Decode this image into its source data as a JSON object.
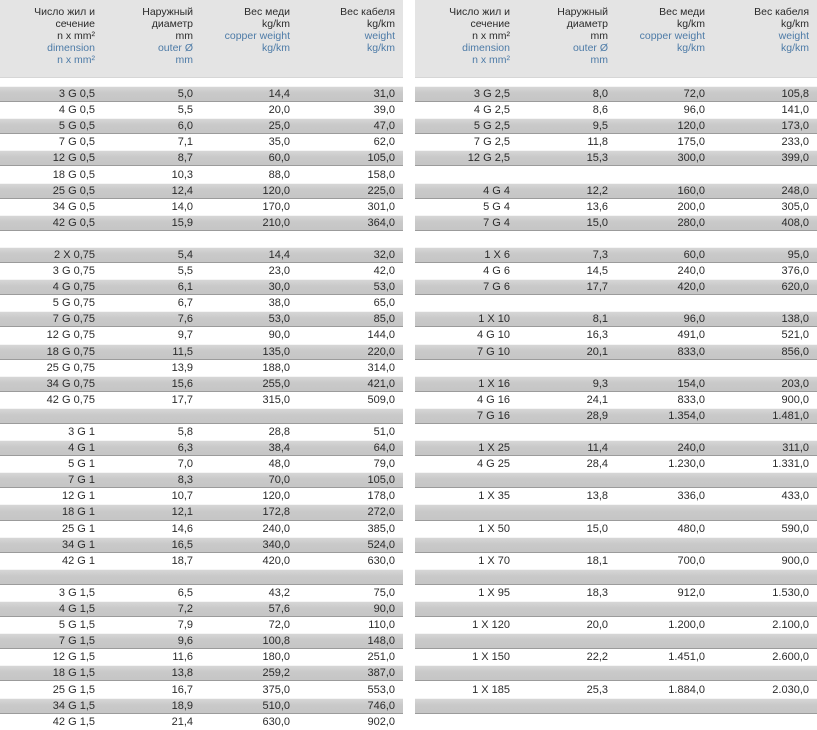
{
  "colors": {
    "accent_blue": "#4d7ba7",
    "header_background": "#e4e4e4",
    "shaded_row": "#c9c9c9",
    "text": "#2b2b2b"
  },
  "header": {
    "columns": [
      {
        "id": "dimension",
        "ru_lines": [
          "Число жил и",
          "сечение",
          "n x mm²"
        ],
        "en_lines": [
          "dimension",
          "n x mm²"
        ]
      },
      {
        "id": "outer-diameter",
        "ru_lines": [
          "Наружный",
          "диаметр",
          "mm"
        ],
        "en_lines": [
          "outer Ø",
          "mm"
        ]
      },
      {
        "id": "copper-weight",
        "ru_lines": [
          "Вес меди",
          "kg/km"
        ],
        "en_lines": [
          "copper weight",
          "kg/km"
        ]
      },
      {
        "id": "cable-weight",
        "ru_lines": [
          "Вес кабеля",
          "kg/km"
        ],
        "en_lines": [
          "weight",
          "kg/km"
        ]
      }
    ]
  },
  "tables": [
    {
      "id": "left",
      "rows": [
        {
          "dim": "3 G 0,5",
          "outer": "5,0",
          "copper": "14,4",
          "weight": "31,0",
          "shaded": true
        },
        {
          "dim": "4 G 0,5",
          "outer": "5,5",
          "copper": "20,0",
          "weight": "39,0",
          "shaded": false
        },
        {
          "dim": "5 G 0,5",
          "outer": "6,0",
          "copper": "25,0",
          "weight": "47,0",
          "shaded": true
        },
        {
          "dim": "7 G 0,5",
          "outer": "7,1",
          "copper": "35,0",
          "weight": "62,0",
          "shaded": false
        },
        {
          "dim": "12 G 0,5",
          "outer": "8,7",
          "copper": "60,0",
          "weight": "105,0",
          "shaded": true
        },
        {
          "dim": "18 G 0,5",
          "outer": "10,3",
          "copper": "88,0",
          "weight": "158,0",
          "shaded": false
        },
        {
          "dim": "25 G 0,5",
          "outer": "12,4",
          "copper": "120,0",
          "weight": "225,0",
          "shaded": true
        },
        {
          "dim": "34 G 0,5",
          "outer": "14,0",
          "copper": "170,0",
          "weight": "301,0",
          "shaded": false
        },
        {
          "dim": "42 G 0,5",
          "outer": "15,9",
          "copper": "210,0",
          "weight": "364,0",
          "shaded": true
        },
        {
          "spacer": true,
          "shaded": false
        },
        {
          "dim": "2 X 0,75",
          "outer": "5,4",
          "copper": "14,4",
          "weight": "32,0",
          "shaded": true
        },
        {
          "dim": "3 G 0,75",
          "outer": "5,5",
          "copper": "23,0",
          "weight": "42,0",
          "shaded": false
        },
        {
          "dim": "4 G 0,75",
          "outer": "6,1",
          "copper": "30,0",
          "weight": "53,0",
          "shaded": true
        },
        {
          "dim": "5 G 0,75",
          "outer": "6,7",
          "copper": "38,0",
          "weight": "65,0",
          "shaded": false
        },
        {
          "dim": "7 G 0,75",
          "outer": "7,6",
          "copper": "53,0",
          "weight": "85,0",
          "shaded": true
        },
        {
          "dim": "12 G 0,75",
          "outer": "9,7",
          "copper": "90,0",
          "weight": "144,0",
          "shaded": false
        },
        {
          "dim": "18 G 0,75",
          "outer": "11,5",
          "copper": "135,0",
          "weight": "220,0",
          "shaded": true
        },
        {
          "dim": "25 G 0,75",
          "outer": "13,9",
          "copper": "188,0",
          "weight": "314,0",
          "shaded": false
        },
        {
          "dim": "34 G 0,75",
          "outer": "15,6",
          "copper": "255,0",
          "weight": "421,0",
          "shaded": true
        },
        {
          "dim": "42 G 0,75",
          "outer": "17,7",
          "copper": "315,0",
          "weight": "509,0",
          "shaded": false
        },
        {
          "spacer": true,
          "shaded": true
        },
        {
          "dim": "3 G 1",
          "outer": "5,8",
          "copper": "28,8",
          "weight": "51,0",
          "shaded": false
        },
        {
          "dim": "4 G 1",
          "outer": "6,3",
          "copper": "38,4",
          "weight": "64,0",
          "shaded": true
        },
        {
          "dim": "5 G 1",
          "outer": "7,0",
          "copper": "48,0",
          "weight": "79,0",
          "shaded": false
        },
        {
          "dim": "7 G 1",
          "outer": "8,3",
          "copper": "70,0",
          "weight": "105,0",
          "shaded": true
        },
        {
          "dim": "12 G 1",
          "outer": "10,7",
          "copper": "120,0",
          "weight": "178,0",
          "shaded": false
        },
        {
          "dim": "18 G 1",
          "outer": "12,1",
          "copper": "172,8",
          "weight": "272,0",
          "shaded": true
        },
        {
          "dim": "25 G 1",
          "outer": "14,6",
          "copper": "240,0",
          "weight": "385,0",
          "shaded": false
        },
        {
          "dim": "34 G 1",
          "outer": "16,5",
          "copper": "340,0",
          "weight": "524,0",
          "shaded": true
        },
        {
          "dim": "42 G 1",
          "outer": "18,7",
          "copper": "420,0",
          "weight": "630,0",
          "shaded": false
        },
        {
          "spacer": true,
          "shaded": true
        },
        {
          "dim": "3 G 1,5",
          "outer": "6,5",
          "copper": "43,2",
          "weight": "75,0",
          "shaded": false
        },
        {
          "dim": "4 G 1,5",
          "outer": "7,2",
          "copper": "57,6",
          "weight": "90,0",
          "shaded": true
        },
        {
          "dim": "5 G 1,5",
          "outer": "7,9",
          "copper": "72,0",
          "weight": "110,0",
          "shaded": false
        },
        {
          "dim": "7 G 1,5",
          "outer": "9,6",
          "copper": "100,8",
          "weight": "148,0",
          "shaded": true
        },
        {
          "dim": "12 G 1,5",
          "outer": "11,6",
          "copper": "180,0",
          "weight": "251,0",
          "shaded": false
        },
        {
          "dim": "18 G 1,5",
          "outer": "13,8",
          "copper": "259,2",
          "weight": "387,0",
          "shaded": true
        },
        {
          "dim": "25 G 1,5",
          "outer": "16,7",
          "copper": "375,0",
          "weight": "553,0",
          "shaded": false
        },
        {
          "dim": "34 G 1,5",
          "outer": "18,9",
          "copper": "510,0",
          "weight": "746,0",
          "shaded": true
        },
        {
          "dim": "42 G 1,5",
          "outer": "21,4",
          "copper": "630,0",
          "weight": "902,0",
          "shaded": false
        }
      ]
    },
    {
      "id": "right",
      "rows": [
        {
          "dim": "3 G 2,5",
          "outer": "8,0",
          "copper": "72,0",
          "weight": "105,8",
          "shaded": true
        },
        {
          "dim": "4 G 2,5",
          "outer": "8,6",
          "copper": "96,0",
          "weight": "141,0",
          "shaded": false
        },
        {
          "dim": "5 G 2,5",
          "outer": "9,5",
          "copper": "120,0",
          "weight": "173,0",
          "shaded": true
        },
        {
          "dim": "7 G 2,5",
          "outer": "11,8",
          "copper": "175,0",
          "weight": "233,0",
          "shaded": false
        },
        {
          "dim": "12 G 2,5",
          "outer": "15,3",
          "copper": "300,0",
          "weight": "399,0",
          "shaded": true
        },
        {
          "spacer": true,
          "shaded": false
        },
        {
          "dim": "4 G 4",
          "outer": "12,2",
          "copper": "160,0",
          "weight": "248,0",
          "shaded": true
        },
        {
          "dim": "5 G 4",
          "outer": "13,6",
          "copper": "200,0",
          "weight": "305,0",
          "shaded": false
        },
        {
          "dim": "7 G 4",
          "outer": "15,0",
          "copper": "280,0",
          "weight": "408,0",
          "shaded": true
        },
        {
          "spacer": true,
          "shaded": false
        },
        {
          "dim": "1 X 6",
          "outer": "7,3",
          "copper": "60,0",
          "weight": "95,0",
          "shaded": true
        },
        {
          "dim": "4 G 6",
          "outer": "14,5",
          "copper": "240,0",
          "weight": "376,0",
          "shaded": false
        },
        {
          "dim": "7 G 6",
          "outer": "17,7",
          "copper": "420,0",
          "weight": "620,0",
          "shaded": true
        },
        {
          "spacer": true,
          "shaded": false
        },
        {
          "dim": "1 X 10",
          "outer": "8,1",
          "copper": "96,0",
          "weight": "138,0",
          "shaded": true
        },
        {
          "dim": "4 G 10",
          "outer": "16,3",
          "copper": "491,0",
          "weight": "521,0",
          "shaded": false
        },
        {
          "dim": "7 G 10",
          "outer": "20,1",
          "copper": "833,0",
          "weight": "856,0",
          "shaded": true
        },
        {
          "spacer": true,
          "shaded": false
        },
        {
          "dim": "1 X 16",
          "outer": "9,3",
          "copper": "154,0",
          "weight": "203,0",
          "shaded": true
        },
        {
          "dim": "4 G 16",
          "outer": "24,1",
          "copper": "833,0",
          "weight": "900,0",
          "shaded": false
        },
        {
          "dim": "7 G 16",
          "outer": "28,9",
          "copper": "1.354,0",
          "weight": "1.481,0",
          "shaded": true
        },
        {
          "spacer": true,
          "shaded": false
        },
        {
          "dim": "1 X 25",
          "outer": "11,4",
          "copper": "240,0",
          "weight": "311,0",
          "shaded": true
        },
        {
          "dim": "4 G 25",
          "outer": "28,4",
          "copper": "1.230,0",
          "weight": "1.331,0",
          "shaded": false
        },
        {
          "spacer": true,
          "shaded": true
        },
        {
          "dim": "1 X 35",
          "outer": "13,8",
          "copper": "336,0",
          "weight": "433,0",
          "shaded": false
        },
        {
          "spacer": true,
          "shaded": true
        },
        {
          "dim": "1 X 50",
          "outer": "15,0",
          "copper": "480,0",
          "weight": "590,0",
          "shaded": false
        },
        {
          "spacer": true,
          "shaded": true
        },
        {
          "dim": "1 X 70",
          "outer": "18,1",
          "copper": "700,0",
          "weight": "900,0",
          "shaded": false
        },
        {
          "spacer": true,
          "shaded": true
        },
        {
          "dim": "1 X 95",
          "outer": "18,3",
          "copper": "912,0",
          "weight": "1.530,0",
          "shaded": false
        },
        {
          "spacer": true,
          "shaded": true
        },
        {
          "dim": "1 X 120",
          "outer": "20,0",
          "copper": "1.200,0",
          "weight": "2.100,0",
          "shaded": false
        },
        {
          "spacer": true,
          "shaded": true
        },
        {
          "dim": "1 X 150",
          "outer": "22,2",
          "copper": "1.451,0",
          "weight": "2.600,0",
          "shaded": false
        },
        {
          "spacer": true,
          "shaded": true
        },
        {
          "dim": "1 X 185",
          "outer": "25,3",
          "copper": "1.884,0",
          "weight": "2.030,0",
          "shaded": false
        },
        {
          "spacer": true,
          "shaded": true
        },
        {
          "spacer": true,
          "shaded": false
        }
      ]
    }
  ]
}
